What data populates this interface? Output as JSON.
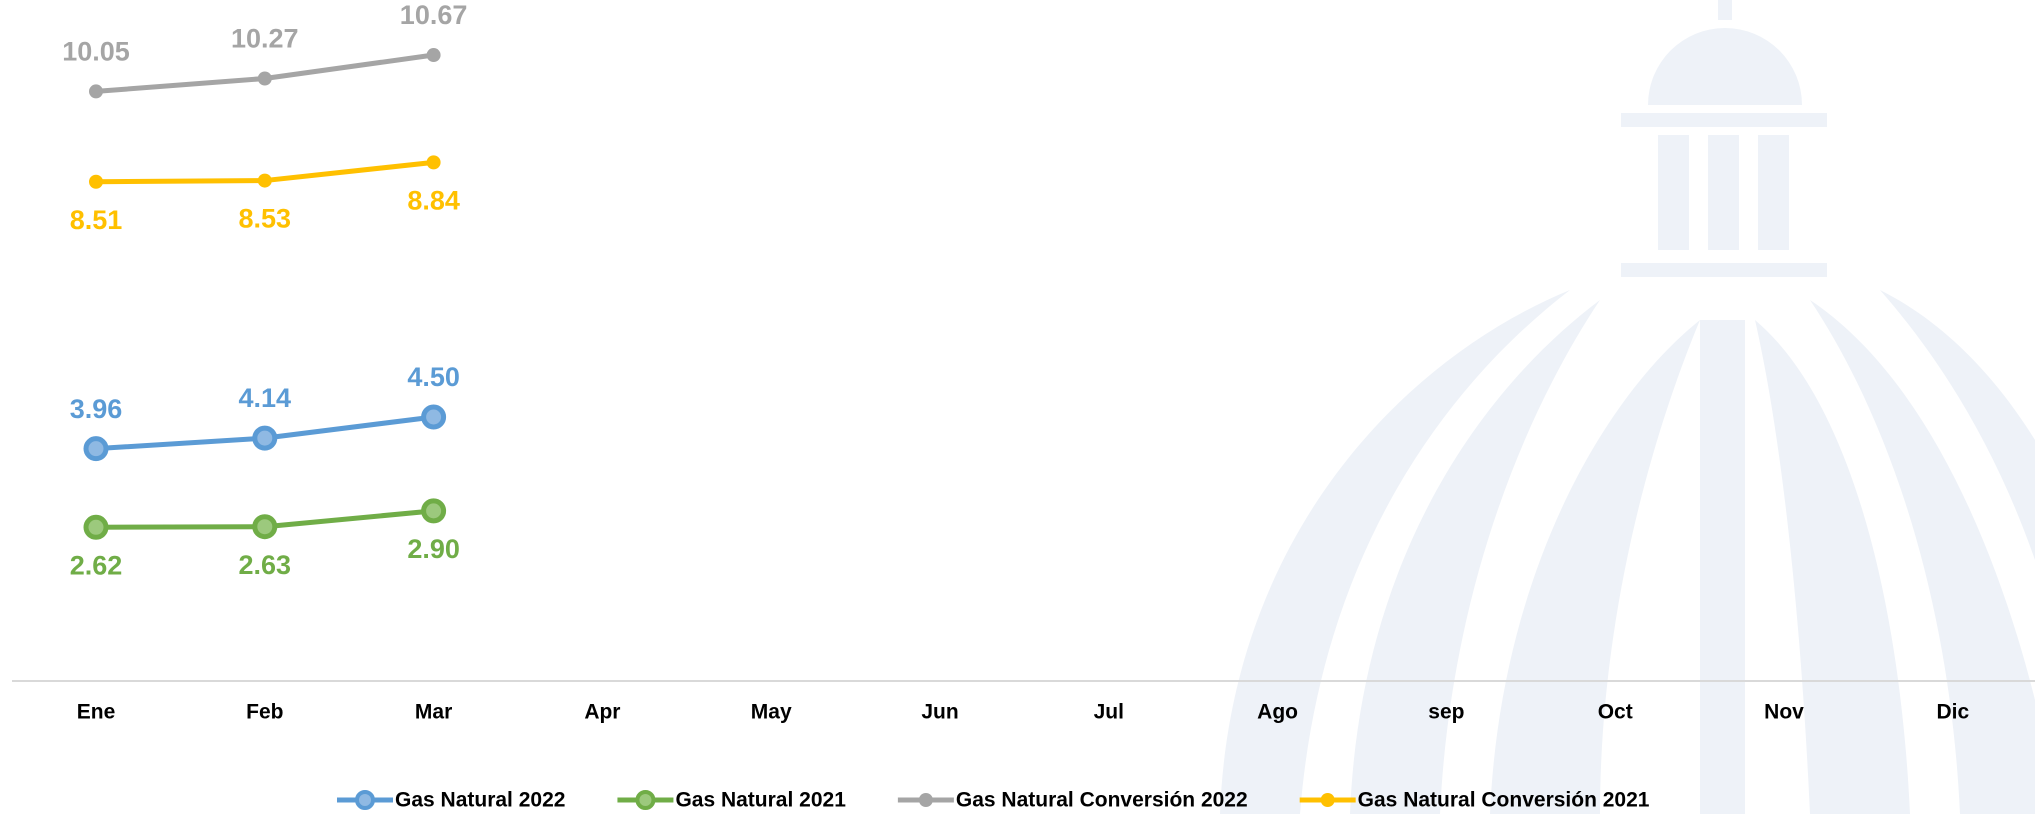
{
  "chart_data": {
    "type": "line",
    "categories": [
      "Ene",
      "Feb",
      "Mar",
      "Apr",
      "May",
      "Jun",
      "Jul",
      "Ago",
      "sep",
      "Oct",
      "Nov",
      "Dic"
    ],
    "ylim": [
      0,
      12
    ],
    "series": [
      {
        "name": "Gas Natural 2022",
        "color": "#5b9bd5",
        "values": [
          3.96,
          4.14,
          4.5,
          null,
          null,
          null,
          null,
          null,
          null,
          null,
          null,
          null
        ],
        "value_labels": [
          "3.96",
          "4.14",
          "4.50",
          null,
          null,
          null,
          null,
          null,
          null,
          null,
          null,
          null
        ]
      },
      {
        "name": "Gas Natural 2021",
        "color": "#70ad47",
        "values": [
          2.62,
          2.63,
          2.9,
          null,
          null,
          null,
          null,
          null,
          null,
          null,
          null,
          null
        ],
        "value_labels": [
          "2.62",
          "2.63",
          "2.90",
          null,
          null,
          null,
          null,
          null,
          null,
          null,
          null,
          null
        ]
      },
      {
        "name": "Gas Natural Conversión 2022",
        "color": "#a5a5a5",
        "values": [
          10.05,
          10.27,
          10.67,
          null,
          null,
          null,
          null,
          null,
          null,
          null,
          null,
          null
        ],
        "value_labels": [
          "10.05",
          "10.27",
          "10.67",
          null,
          null,
          null,
          null,
          null,
          null,
          null,
          null,
          null
        ]
      },
      {
        "name": "Gas Natural Conversión 2021",
        "color": "#ffc000",
        "values": [
          8.51,
          8.53,
          8.84,
          null,
          null,
          null,
          null,
          null,
          null,
          null,
          null,
          null
        ],
        "value_labels": [
          "8.51",
          "8.53",
          "8.84",
          null,
          null,
          null,
          null,
          null,
          null,
          null,
          null,
          null
        ]
      }
    ]
  }
}
